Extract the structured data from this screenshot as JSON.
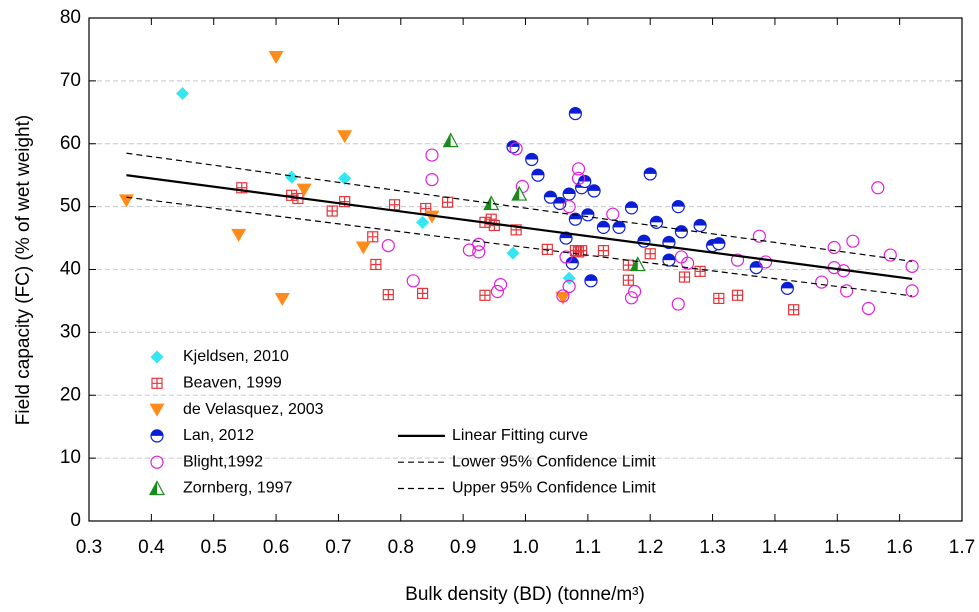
{
  "chart_data": {
    "type": "scatter",
    "x_label": "Bulk density (BD) (tonne/m³)",
    "y_label": "Field capacity (FC) (% of wet weight)",
    "xlim": [
      0.3,
      1.7
    ],
    "ylim": [
      0,
      80
    ],
    "xticks": [
      0.3,
      0.4,
      0.5,
      0.6,
      0.7,
      0.8,
      0.9,
      {
        "value": 1,
        "label": "1.0"
      },
      1.1,
      1.2,
      1.3,
      1.4,
      1.5,
      1.6,
      1.7
    ],
    "yticks": [
      0,
      10,
      20,
      30,
      40,
      50,
      60,
      70,
      80
    ],
    "grid": true,
    "legend": "lower left",
    "series": [
      {
        "name": "Kjeldsen, 2010",
        "color": "#33e6f0",
        "marker": "diamond",
        "x": [
          0.45,
          0.625,
          0.71,
          0.835,
          0.98,
          1.07
        ],
        "values": [
          68,
          54.7,
          54.5,
          47.5,
          42.6,
          38.6
        ]
      },
      {
        "name": "Beaven, 1999",
        "color": "#e8343a",
        "marker": "square-plus",
        "x": [
          0.545,
          0.625,
          0.635,
          0.69,
          0.71,
          0.755,
          0.76,
          0.78,
          0.79,
          0.835,
          0.84,
          0.875,
          0.935,
          0.935,
          0.945,
          0.95,
          0.985,
          1.035,
          1.08,
          1.085,
          1.09,
          1.125,
          1.165,
          1.165,
          1.2,
          1.255,
          1.28,
          1.31,
          1.34,
          1.43
        ],
        "values": [
          53,
          51.8,
          51.3,
          49.3,
          50.8,
          45.2,
          40.8,
          36,
          50.3,
          36.2,
          49.7,
          50.7,
          47.5,
          35.9,
          48,
          47,
          46.3,
          43.2,
          43,
          42.8,
          43,
          43,
          38.3,
          40.7,
          42.5,
          38.8,
          39.7,
          35.4,
          35.9,
          33.6
        ]
      },
      {
        "name": "de Velasquez, 2003",
        "color": "#ff8c1a",
        "marker": "triangle-down",
        "x": [
          0.36,
          0.54,
          0.6,
          0.61,
          0.645,
          0.71,
          0.74,
          0.85,
          1.06
        ],
        "values": [
          51,
          45.5,
          73.8,
          35.3,
          52.7,
          61.2,
          43.5,
          48.4,
          35.5
        ]
      },
      {
        "name": "Lan, 2012",
        "color": "#0a1ed6",
        "marker": "half-circle",
        "x": [
          0.98,
          1.01,
          1.02,
          1.04,
          1.055,
          1.065,
          1.07,
          1.075,
          1.08,
          1.08,
          1.09,
          1.095,
          1.1,
          1.105,
          1.11,
          1.125,
          1.15,
          1.17,
          1.19,
          1.2,
          1.21,
          1.23,
          1.23,
          1.245,
          1.25,
          1.28,
          1.3,
          1.31,
          1.37,
          1.42
        ],
        "values": [
          59.5,
          57.5,
          55,
          51.5,
          50.5,
          45,
          52,
          41,
          64.8,
          48,
          53,
          54,
          48.7,
          38.2,
          52.5,
          46.7,
          46.7,
          49.8,
          44.5,
          55.2,
          47.5,
          44.3,
          41.5,
          50,
          46,
          47,
          43.8,
          44.1,
          40.3,
          37
        ]
      },
      {
        "name": "Blight,1992",
        "color": "#e020d8",
        "marker": "open-circle",
        "x": [
          0.78,
          0.82,
          0.85,
          0.85,
          0.91,
          0.925,
          0.925,
          0.955,
          0.96,
          0.985,
          0.995,
          1.06,
          1.065,
          1.07,
          1.07,
          1.085,
          1.085,
          1.14,
          1.17,
          1.175,
          1.245,
          1.25,
          1.26,
          1.34,
          1.375,
          1.385,
          1.475,
          1.495,
          1.495,
          1.51,
          1.515,
          1.525,
          1.55,
          1.565,
          1.585,
          1.62,
          1.62
        ],
        "values": [
          43.8,
          38.2,
          58.2,
          54.3,
          43.1,
          44,
          42.8,
          36.5,
          37.6,
          59.2,
          53.2,
          35.8,
          42,
          50,
          37.3,
          56,
          54.5,
          48.8,
          35.5,
          36.5,
          34.5,
          42,
          41,
          41.5,
          45.3,
          41.2,
          38,
          43.5,
          40.3,
          39.8,
          36.6,
          44.5,
          33.8,
          53,
          42.3,
          40.5,
          36.6
        ]
      },
      {
        "name": "Zornberg, 1997",
        "color": "#1a8a1a",
        "marker": "half-triangle",
        "x": [
          0.88,
          0.945,
          0.99,
          1.18
        ],
        "values": [
          60.5,
          50.5,
          52,
          40.8
        ]
      },
      {
        "name": "Linear Fitting curve",
        "color": "#000000",
        "marker": "solid-line",
        "x": [
          0.36,
          1.62
        ],
        "values": [
          55,
          38.5
        ]
      },
      {
        "name": "Lower 95% Confidence Limit",
        "color": "#000000",
        "marker": "dashed-line",
        "x": [
          0.36,
          1.62
        ],
        "values": [
          51.5,
          35.8
        ]
      },
      {
        "name": "Upper 95% Confidence Limit",
        "color": "#000000",
        "marker": "dashed-line",
        "x": [
          0.36,
          1.62
        ],
        "values": [
          58.5,
          41.3
        ]
      }
    ]
  }
}
